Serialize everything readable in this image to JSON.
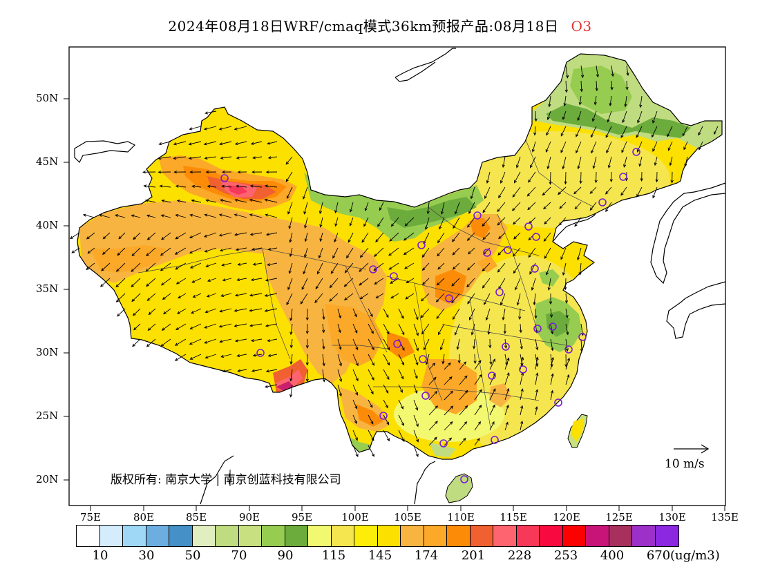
{
  "title": {
    "text": "2024年08月18日WRF/cmaq模式36km预报产品:08月18日",
    "species": "O3"
  },
  "axes": {
    "lat_labels": [
      "50N",
      "45N",
      "40N",
      "35N",
      "30N",
      "25N",
      "20N"
    ],
    "lon_labels": [
      "75E",
      "80E",
      "85E",
      "90E",
      "95E",
      "100E",
      "105E",
      "110E",
      "115E",
      "120E",
      "125E",
      "130E",
      "135E"
    ]
  },
  "copyright": "版权所有: 南京大学 | 南京创蓝科技有限公司",
  "wind_reference": "10 m/s",
  "legend": {
    "colors": [
      "#ffffff",
      "#d4ecfb",
      "#9fd8f6",
      "#6baedf",
      "#4590c6",
      "#e0eec0",
      "#c0dc80",
      "#c8e080",
      "#96cc50",
      "#6cac3c",
      "#f2f870",
      "#f5e650",
      "#fcee08",
      "#fce000",
      "#f8b440",
      "#fca828",
      "#fc8c08",
      "#f06030",
      "#fe6470",
      "#f83858",
      "#f80a40",
      "#ff0000",
      "#c81478",
      "#a8305c",
      "#9c30c8",
      "#8c28e0"
    ],
    "labels": [
      "10",
      "30",
      "50",
      "70",
      "90",
      "115",
      "145",
      "174",
      "201",
      "228",
      "253",
      "400",
      "670"
    ],
    "unit": "(ug/m3)"
  },
  "stations": 36
}
